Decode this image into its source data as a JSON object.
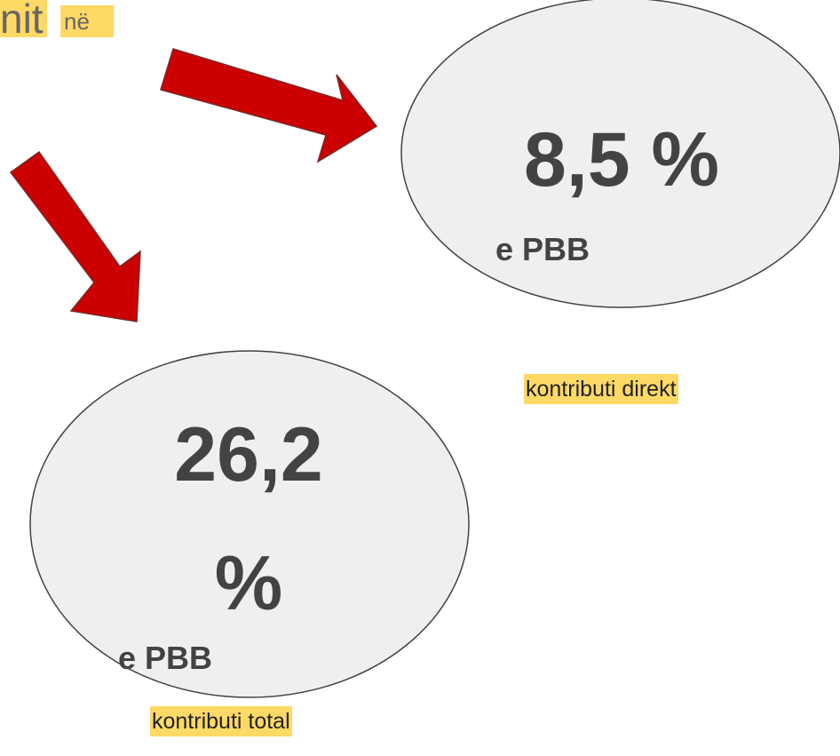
{
  "header": {
    "title_fragment": "nit",
    "word": "në"
  },
  "circles": [
    {
      "value": "8,5 %",
      "unit": "e PBB",
      "caption": "kontributi direkt"
    },
    {
      "value": "26,2 %",
      "unit": "e PBB",
      "caption": "kontributi total"
    }
  ]
}
